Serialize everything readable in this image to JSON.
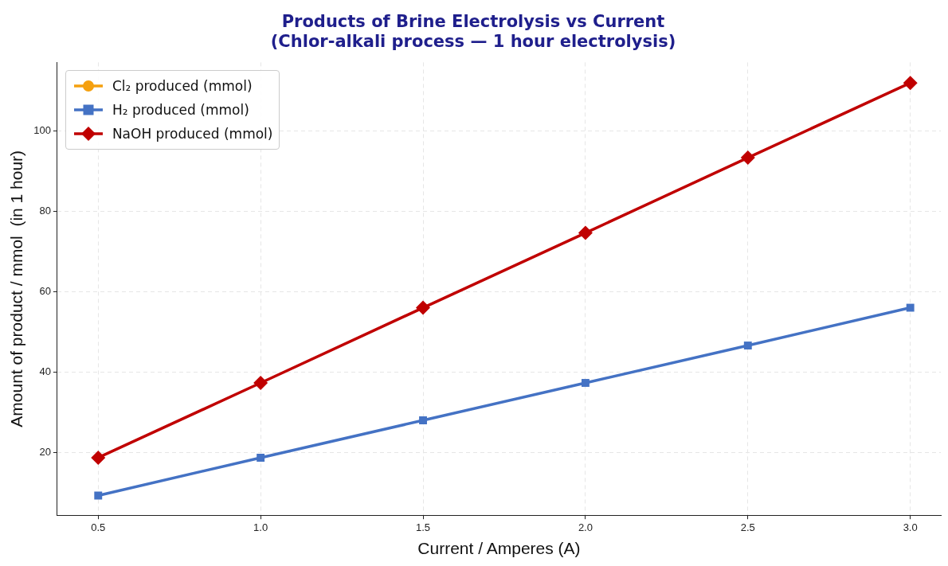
{
  "chart_data": {
    "type": "line",
    "title": "Products of Brine Electrolysis vs Current",
    "subtitle": "(Chlor-alkali process — 1 hour electrolysis)",
    "xlabel": "Current / Amperes (A)",
    "ylabel": "Amount of product / mmol  (in 1 hour)",
    "x": [
      0.5,
      1.0,
      1.5,
      2.0,
      2.5,
      3.0
    ],
    "series": [
      {
        "name": "Cl₂ produced (mmol)",
        "color": "#f5a00f",
        "marker": "circle",
        "values": [
          null,
          null,
          null,
          null,
          null,
          null
        ]
      },
      {
        "name": "H₂ produced (mmol)",
        "color": "#4472c4",
        "marker": "square",
        "values": [
          9.3,
          18.7,
          28,
          37.3,
          46.6,
          56
        ]
      },
      {
        "name": "NaOH produced (mmol)",
        "color": "#c00000",
        "marker": "diamond",
        "values": [
          18.7,
          37.3,
          56,
          74.6,
          93.3,
          111.9
        ]
      }
    ],
    "xlim": [
      0.374,
      3.094
    ],
    "xticks": [
      0.5,
      {
        "value": 1,
        "label": "1.0"
      },
      1.5,
      {
        "value": 2,
        "label": "2.0"
      },
      2.5,
      {
        "value": 3,
        "label": "3.0"
      }
    ],
    "ylim": [
      4.4,
      117
    ],
    "yticks": [
      20,
      40,
      60,
      80,
      100
    ],
    "grid": true,
    "legend": "top left",
    "line_style": "solid"
  }
}
